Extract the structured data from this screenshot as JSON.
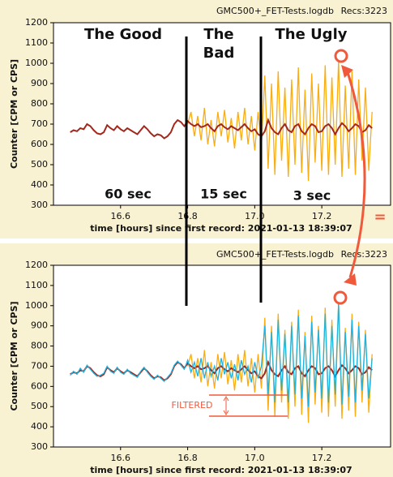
{
  "chart_data": [
    {
      "type": "line",
      "title": "GMC500+_FET-Tests.logdb",
      "subtitle": "Recs:3223",
      "x_label": "time [hours] since first record: 2021-01-13 18:39:07",
      "y_label": "Counter  [CPM or CPS]",
      "xlim": [
        16.4,
        17.405
      ],
      "ylim": [
        300,
        1200
      ],
      "xticks": [
        16.6,
        16.8,
        {
          "value": 17,
          "label": "17.0"
        },
        17.2
      ],
      "yticks": [
        300,
        400,
        500,
        600,
        700,
        800,
        900,
        1000,
        1100,
        1200
      ],
      "grid": false,
      "annotations": [
        "The Good",
        "The",
        "Bad",
        "The Ugly",
        "60 sec",
        "15 sec",
        "3 sec",
        "="
      ],
      "series": [
        {
          "color": "#f9ad12",
          "x": [
            16.8,
            16.81,
            16.82,
            16.83,
            16.84,
            16.85,
            16.86,
            16.87,
            16.88,
            16.89,
            16.9,
            16.91,
            16.92,
            16.93,
            16.94,
            16.95,
            16.96,
            16.97,
            16.98,
            16.99,
            17.0,
            17.01,
            17.02,
            17.03,
            17.04,
            17.05,
            17.06,
            17.07,
            17.08,
            17.09,
            17.1,
            17.11,
            17.12,
            17.13,
            17.14,
            17.15,
            17.16,
            17.17,
            17.18,
            17.19,
            17.2,
            17.21,
            17.22,
            17.23,
            17.24,
            17.25,
            17.26,
            17.27,
            17.28,
            17.29,
            17.3,
            17.31,
            17.32,
            17.33,
            17.34,
            17.35
          ],
          "values": [
            700,
            760,
            640,
            740,
            620,
            780,
            600,
            720,
            590,
            760,
            640,
            770,
            610,
            730,
            580,
            760,
            620,
            780,
            600,
            740,
            570,
            760,
            590,
            940,
            480,
            900,
            450,
            960,
            520,
            880,
            440,
            920,
            500,
            980,
            460,
            870,
            420,
            950,
            510,
            900,
            470,
            990,
            450,
            930,
            500,
            1010,
            440,
            890,
            480,
            960,
            450,
            920,
            520,
            880,
            470,
            760
          ]
        },
        {
          "color": "#a3281c",
          "x": [
            16.45,
            16.46,
            16.47,
            16.48,
            16.49,
            16.5,
            16.51,
            16.52,
            16.53,
            16.54,
            16.55,
            16.56,
            16.57,
            16.58,
            16.59,
            16.6,
            16.61,
            16.62,
            16.63,
            16.64,
            16.65,
            16.66,
            16.67,
            16.68,
            16.69,
            16.7,
            16.71,
            16.72,
            16.73,
            16.74,
            16.75,
            16.76,
            16.77,
            16.78,
            16.79,
            16.8,
            16.81,
            16.82,
            16.83,
            16.84,
            16.85,
            16.86,
            16.87,
            16.88,
            16.89,
            16.9,
            16.91,
            16.92,
            16.93,
            16.94,
            16.95,
            16.96,
            16.97,
            16.98,
            16.99,
            17.0,
            17.01,
            17.02,
            17.03,
            17.04,
            17.05,
            17.06,
            17.07,
            17.08,
            17.09,
            17.1,
            17.11,
            17.12,
            17.13,
            17.14,
            17.15,
            17.16,
            17.17,
            17.18,
            17.19,
            17.2,
            17.21,
            17.22,
            17.23,
            17.24,
            17.25,
            17.26,
            17.27,
            17.28,
            17.29,
            17.3,
            17.31,
            17.32,
            17.33,
            17.34,
            17.35
          ],
          "values": [
            660,
            670,
            665,
            680,
            675,
            700,
            690,
            670,
            655,
            650,
            660,
            695,
            680,
            670,
            690,
            675,
            665,
            680,
            670,
            660,
            650,
            670,
            690,
            675,
            655,
            640,
            650,
            645,
            630,
            640,
            660,
            700,
            720,
            710,
            690,
            715,
            700,
            690,
            700,
            685,
            690,
            700,
            680,
            665,
            690,
            700,
            685,
            675,
            690,
            680,
            670,
            685,
            700,
            680,
            665,
            675,
            650,
            640,
            665,
            720,
            680,
            660,
            650,
            680,
            700,
            670,
            660,
            690,
            700,
            665,
            650,
            680,
            700,
            690,
            660,
            665,
            690,
            700,
            680,
            650,
            680,
            705,
            690,
            665,
            680,
            700,
            690,
            660,
            670,
            695,
            680
          ]
        }
      ]
    },
    {
      "type": "line",
      "title": "GMC500+_FET-Tests.logdb",
      "subtitle": "Recs:3223",
      "x_label": "time [hours] since first record: 2021-01-13 18:39:07",
      "y_label": "Counter  [CPM or CPS]",
      "xlim": [
        16.4,
        17.405
      ],
      "ylim": [
        300,
        1200
      ],
      "xticks": [
        16.6,
        16.8,
        {
          "value": 17,
          "label": "17.0"
        },
        17.2
      ],
      "yticks": [
        300,
        400,
        500,
        600,
        700,
        800,
        900,
        1000,
        1100,
        1200
      ],
      "grid": false,
      "annotations": [
        "FILTERED"
      ],
      "series": [
        {
          "color": "#f9ad12",
          "x": [
            16.8,
            16.81,
            16.82,
            16.83,
            16.84,
            16.85,
            16.86,
            16.87,
            16.88,
            16.89,
            16.9,
            16.91,
            16.92,
            16.93,
            16.94,
            16.95,
            16.96,
            16.97,
            16.98,
            16.99,
            17.0,
            17.01,
            17.02,
            17.03,
            17.04,
            17.05,
            17.06,
            17.07,
            17.08,
            17.09,
            17.1,
            17.11,
            17.12,
            17.13,
            17.14,
            17.15,
            17.16,
            17.17,
            17.18,
            17.19,
            17.2,
            17.21,
            17.22,
            17.23,
            17.24,
            17.25,
            17.26,
            17.27,
            17.28,
            17.29,
            17.3,
            17.31,
            17.32,
            17.33,
            17.34,
            17.35
          ],
          "values": [
            700,
            760,
            640,
            740,
            620,
            780,
            600,
            720,
            590,
            760,
            640,
            770,
            610,
            730,
            580,
            760,
            620,
            780,
            600,
            740,
            570,
            760,
            590,
            940,
            480,
            900,
            450,
            960,
            520,
            880,
            440,
            920,
            500,
            980,
            460,
            870,
            420,
            950,
            510,
            900,
            470,
            990,
            450,
            930,
            500,
            1010,
            440,
            890,
            480,
            960,
            450,
            920,
            520,
            880,
            470,
            760
          ]
        },
        {
          "color": "#a3281c",
          "x": [
            16.45,
            16.46,
            16.47,
            16.48,
            16.49,
            16.5,
            16.51,
            16.52,
            16.53,
            16.54,
            16.55,
            16.56,
            16.57,
            16.58,
            16.59,
            16.6,
            16.61,
            16.62,
            16.63,
            16.64,
            16.65,
            16.66,
            16.67,
            16.68,
            16.69,
            16.7,
            16.71,
            16.72,
            16.73,
            16.74,
            16.75,
            16.76,
            16.77,
            16.78,
            16.79,
            16.8,
            16.81,
            16.82,
            16.83,
            16.84,
            16.85,
            16.86,
            16.87,
            16.88,
            16.89,
            16.9,
            16.91,
            16.92,
            16.93,
            16.94,
            16.95,
            16.96,
            16.97,
            16.98,
            16.99,
            17.0,
            17.01,
            17.02,
            17.03,
            17.04,
            17.05,
            17.06,
            17.07,
            17.08,
            17.09,
            17.1,
            17.11,
            17.12,
            17.13,
            17.14,
            17.15,
            17.16,
            17.17,
            17.18,
            17.19,
            17.2,
            17.21,
            17.22,
            17.23,
            17.24,
            17.25,
            17.26,
            17.27,
            17.28,
            17.29,
            17.3,
            17.31,
            17.32,
            17.33,
            17.34,
            17.35
          ],
          "values": [
            660,
            670,
            665,
            680,
            675,
            700,
            690,
            670,
            655,
            650,
            660,
            695,
            680,
            670,
            690,
            675,
            665,
            680,
            670,
            660,
            650,
            670,
            690,
            675,
            655,
            640,
            650,
            645,
            630,
            640,
            660,
            700,
            720,
            710,
            690,
            715,
            700,
            690,
            700,
            685,
            690,
            700,
            680,
            665,
            690,
            700,
            685,
            675,
            690,
            680,
            670,
            685,
            700,
            680,
            665,
            675,
            650,
            640,
            665,
            720,
            680,
            660,
            650,
            680,
            700,
            670,
            660,
            690,
            700,
            665,
            650,
            680,
            700,
            690,
            660,
            665,
            690,
            700,
            680,
            650,
            680,
            705,
            690,
            665,
            680,
            700,
            690,
            660,
            670,
            695,
            680
          ]
        },
        {
          "color": "#1cb4e2",
          "x": [
            16.45,
            16.46,
            16.47,
            16.48,
            16.49,
            16.5,
            16.51,
            16.52,
            16.53,
            16.54,
            16.55,
            16.56,
            16.57,
            16.58,
            16.59,
            16.6,
            16.61,
            16.62,
            16.63,
            16.64,
            16.65,
            16.66,
            16.67,
            16.68,
            16.69,
            16.7,
            16.71,
            16.72,
            16.73,
            16.74,
            16.75,
            16.76,
            16.77,
            16.78,
            16.79,
            16.8,
            16.81,
            16.82,
            16.83,
            16.84,
            16.85,
            16.86,
            16.87,
            16.88,
            16.89,
            16.9,
            16.91,
            16.92,
            16.93,
            16.94,
            16.95,
            16.96,
            16.97,
            16.98,
            16.99,
            17.0,
            17.01,
            17.02,
            17.03,
            17.04,
            17.05,
            17.06,
            17.07,
            17.08,
            17.09,
            17.1,
            17.11,
            17.12,
            17.13,
            17.14,
            17.15,
            17.16,
            17.17,
            17.18,
            17.19,
            17.2,
            17.21,
            17.22,
            17.23,
            17.24,
            17.25,
            17.26,
            17.27,
            17.28,
            17.29,
            17.3,
            17.31,
            17.32,
            17.33,
            17.34,
            17.35
          ],
          "values": [
            655,
            675,
            660,
            690,
            670,
            705,
            685,
            665,
            650,
            655,
            665,
            700,
            675,
            665,
            695,
            670,
            660,
            685,
            665,
            655,
            645,
            675,
            695,
            670,
            650,
            635,
            655,
            640,
            625,
            645,
            665,
            705,
            725,
            705,
            685,
            730,
            670,
            720,
            650,
            740,
            640,
            720,
            650,
            700,
            630,
            740,
            660,
            720,
            640,
            710,
            630,
            730,
            660,
            700,
            620,
            720,
            640,
            700,
            900,
            560,
            870,
            520,
            930,
            580,
            860,
            520,
            900,
            560,
            950,
            540,
            850,
            500,
            920,
            570,
            880,
            540,
            960,
            520,
            900,
            560,
            1010,
            510,
            870,
            550,
            930,
            520,
            900,
            580,
            860,
            540,
            740
          ]
        }
      ]
    }
  ]
}
